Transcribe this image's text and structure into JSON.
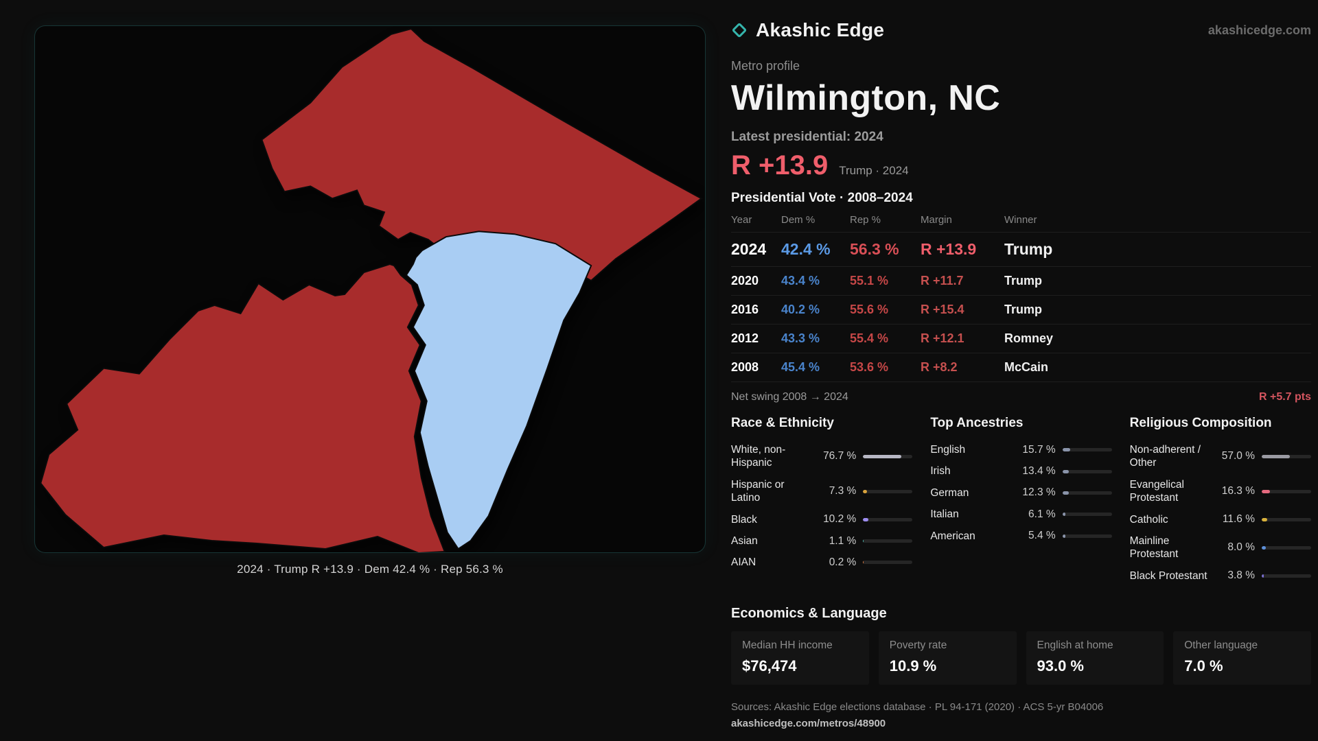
{
  "brand": {
    "name": "Akashic Edge",
    "site": "akashicedge.com",
    "accent": "#35b5ac"
  },
  "map": {
    "caption": "2024 · Trump R +13.9 · Dem 42.4 % · Rep 56.3 %",
    "colors": {
      "rep": "#a82c2c",
      "dem": "#a9cdf3"
    }
  },
  "profile": {
    "kicker": "Metro profile",
    "title": "Wilmington, NC",
    "latest_label": "Latest presidential: 2024",
    "headline_margin": "R +13.9",
    "headline_context": "Trump · 2024"
  },
  "vote_table": {
    "title": "Presidential Vote · 2008–2024",
    "columns": {
      "year": "Year",
      "dem": "Dem %",
      "rep": "Rep %",
      "margin": "Margin",
      "winner": "Winner"
    },
    "rows": [
      {
        "year": "2024",
        "dem": "42.4 %",
        "rep": "56.3 %",
        "margin": "R +13.9",
        "winner": "Trump"
      },
      {
        "year": "2020",
        "dem": "43.4 %",
        "rep": "55.1 %",
        "margin": "R +11.7",
        "winner": "Trump"
      },
      {
        "year": "2016",
        "dem": "40.2 %",
        "rep": "55.6 %",
        "margin": "R +15.4",
        "winner": "Trump"
      },
      {
        "year": "2012",
        "dem": "43.3 %",
        "rep": "55.4 %",
        "margin": "R +12.1",
        "winner": "Romney"
      },
      {
        "year": "2008",
        "dem": "45.4 %",
        "rep": "53.6 %",
        "margin": "R +8.2",
        "winner": "McCain"
      }
    ],
    "net_swing_label": "Net swing 2008 → 2024",
    "net_swing_value": "R +5.7 pts"
  },
  "demographics": [
    {
      "title": "Race & Ethnicity",
      "rows": [
        {
          "label": "White, non-Hispanic",
          "value": "76.7 %",
          "pct": 76.7,
          "color": "#b7b7c4"
        },
        {
          "label": "Hispanic or Latino",
          "value": "7.3 %",
          "pct": 7.3,
          "color": "#d9a33c"
        },
        {
          "label": "Black",
          "value": "10.2 %",
          "pct": 10.2,
          "color": "#9d8df0"
        },
        {
          "label": "Asian",
          "value": "1.1 %",
          "pct": 1.1,
          "color": "#4db6ac"
        },
        {
          "label": "AIAN",
          "value": "0.2 %",
          "pct": 0.2,
          "color": "#d9763c"
        }
      ]
    },
    {
      "title": "Top Ancestries",
      "rows": [
        {
          "label": "English",
          "value": "15.7 %",
          "pct": 15.7,
          "color": "#8a94aa"
        },
        {
          "label": "Irish",
          "value": "13.4 %",
          "pct": 13.4,
          "color": "#8a94aa"
        },
        {
          "label": "German",
          "value": "12.3 %",
          "pct": 12.3,
          "color": "#8a94aa"
        },
        {
          "label": "Italian",
          "value": "6.1 %",
          "pct": 6.1,
          "color": "#8a94aa"
        },
        {
          "label": "American",
          "value": "5.4 %",
          "pct": 5.4,
          "color": "#8a94aa"
        }
      ]
    },
    {
      "title": "Religious Composition",
      "rows": [
        {
          "label": "Non-adherent / Other",
          "value": "57.0 %",
          "pct": 57.0,
          "color": "#9a9aa2"
        },
        {
          "label": "Evangelical Protestant",
          "value": "16.3 %",
          "pct": 16.3,
          "color": "#e4697e"
        },
        {
          "label": "Catholic",
          "value": "11.6 %",
          "pct": 11.6,
          "color": "#d9b23c"
        },
        {
          "label": "Mainline Protestant",
          "value": "8.0 %",
          "pct": 8.0,
          "color": "#5d8fd9"
        },
        {
          "label": "Black Protestant",
          "value": "3.8 %",
          "pct": 3.8,
          "color": "#7a6fd0"
        }
      ]
    }
  ],
  "economics": {
    "title": "Economics & Language",
    "stats": [
      {
        "label": "Median HH income",
        "value": "$76,474"
      },
      {
        "label": "Poverty rate",
        "value": "10.9 %"
      },
      {
        "label": "English at home",
        "value": "93.0 %"
      },
      {
        "label": "Other language",
        "value": "7.0 %"
      }
    ]
  },
  "footer": {
    "sources": "Sources: Akashic Edge elections database · PL 94-171 (2020) · ACS 5-yr B04006",
    "permalink": "akashicedge.com/metros/48900"
  }
}
